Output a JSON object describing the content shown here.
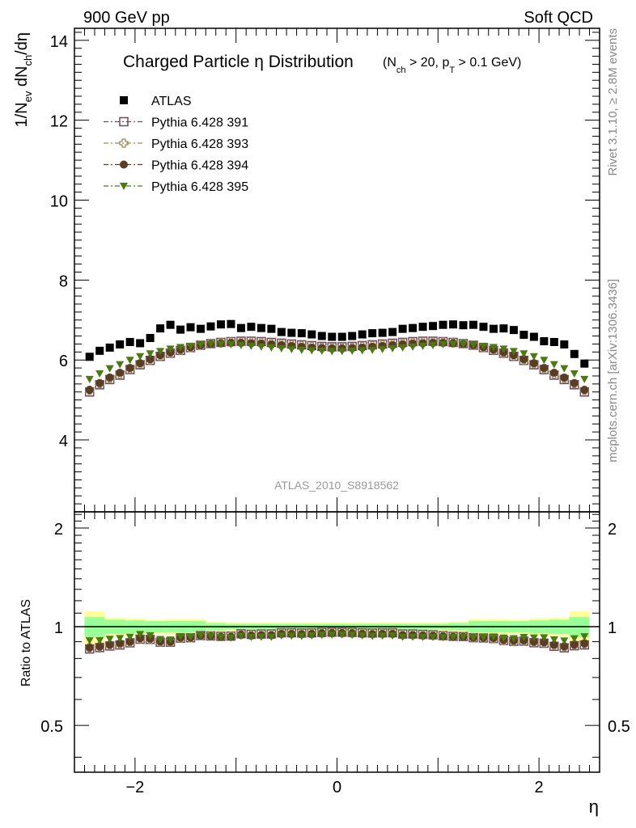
{
  "header": {
    "left": "900 GeV pp",
    "right": "Soft QCD"
  },
  "side": {
    "rivet": "Rivet 3.1.10, ≥ 2.8M events",
    "mcplots": "mcplots.cern.ch [arXiv:1306.3436]"
  },
  "colors": {
    "atlas": "#000000",
    "p391": "#6e4a5c",
    "p393": "#9a8a5a",
    "p394": "#5a3d24",
    "p395": "#4a7a10",
    "band_outer": "#ffff99",
    "band_inner": "#99ff99"
  },
  "chart_data": [
    {
      "type": "scatter",
      "title": "Charged Particle η Distribution",
      "title_sub": "(N_ch > 20, p_T > 0.1 GeV)",
      "analysis_label": "ATLAS_2010_S8918562",
      "ylabel": "1/N_ev dN_ch/dη",
      "xlim": [
        -2.6,
        2.6
      ],
      "ylim": [
        2.2,
        14.3
      ],
      "yticks": [
        4,
        6,
        8,
        10,
        12,
        14
      ],
      "legend_position": "top-left",
      "legend": [
        "ATLAS",
        "Pythia 6.428 391",
        "Pythia 6.428 393",
        "Pythia 6.428 394",
        "Pythia 6.428 395"
      ],
      "x": [
        -2.45,
        -2.35,
        -2.25,
        -2.15,
        -2.05,
        -1.95,
        -1.85,
        -1.75,
        -1.65,
        -1.55,
        -1.45,
        -1.35,
        -1.25,
        -1.15,
        -1.05,
        -0.95,
        -0.85,
        -0.75,
        -0.65,
        -0.55,
        -0.45,
        -0.35,
        -0.25,
        -0.15,
        -0.05,
        0.05,
        0.15,
        0.25,
        0.35,
        0.45,
        0.55,
        0.65,
        0.75,
        0.85,
        0.95,
        1.05,
        1.15,
        1.25,
        1.35,
        1.45,
        1.55,
        1.65,
        1.75,
        1.85,
        1.95,
        2.05,
        2.15,
        2.25,
        2.35,
        2.45
      ],
      "series": [
        {
          "name": "ATLAS",
          "marker": "filled-square",
          "values": [
            6.08,
            6.23,
            6.31,
            6.39,
            6.45,
            6.42,
            6.55,
            6.79,
            6.88,
            6.76,
            6.82,
            6.78,
            6.84,
            6.89,
            6.9,
            6.8,
            6.83,
            6.8,
            6.78,
            6.7,
            6.68,
            6.67,
            6.64,
            6.6,
            6.58,
            6.58,
            6.6,
            6.64,
            6.67,
            6.68,
            6.7,
            6.78,
            6.8,
            6.83,
            6.85,
            6.88,
            6.89,
            6.87,
            6.88,
            6.83,
            6.78,
            6.79,
            6.75,
            6.63,
            6.58,
            6.47,
            6.45,
            6.39,
            6.15,
            5.91
          ]
        },
        {
          "name": "Pythia 6.428 391",
          "marker": "open-square",
          "values": [
            5.2,
            5.38,
            5.51,
            5.62,
            5.76,
            5.88,
            5.99,
            6.09,
            6.17,
            6.24,
            6.31,
            6.37,
            6.41,
            6.44,
            6.46,
            6.47,
            6.47,
            6.46,
            6.44,
            6.42,
            6.4,
            6.38,
            6.36,
            6.34,
            6.33,
            6.33,
            6.34,
            6.36,
            6.38,
            6.4,
            6.42,
            6.44,
            6.46,
            6.47,
            6.47,
            6.46,
            6.44,
            6.41,
            6.37,
            6.31,
            6.24,
            6.17,
            6.09,
            5.99,
            5.88,
            5.76,
            5.62,
            5.51,
            5.38,
            5.2
          ]
        },
        {
          "name": "Pythia 6.428 393",
          "marker": "open-cross",
          "values": [
            5.24,
            5.41,
            5.54,
            5.65,
            5.78,
            5.9,
            6.0,
            6.1,
            6.18,
            6.25,
            6.31,
            6.37,
            6.41,
            6.43,
            6.45,
            6.45,
            6.45,
            6.44,
            6.42,
            6.4,
            6.38,
            6.36,
            6.34,
            6.32,
            6.31,
            6.31,
            6.32,
            6.34,
            6.36,
            6.38,
            6.4,
            6.42,
            6.44,
            6.45,
            6.45,
            6.45,
            6.43,
            6.41,
            6.37,
            6.31,
            6.25,
            6.18,
            6.1,
            6.0,
            5.9,
            5.78,
            5.65,
            5.54,
            5.41,
            5.24
          ]
        },
        {
          "name": "Pythia 6.428 394",
          "marker": "filled-circle",
          "values": [
            5.25,
            5.42,
            5.56,
            5.68,
            5.8,
            5.92,
            6.02,
            6.12,
            6.19,
            6.26,
            6.32,
            6.37,
            6.4,
            6.42,
            6.43,
            6.43,
            6.42,
            6.41,
            6.39,
            6.37,
            6.35,
            6.33,
            6.31,
            6.3,
            6.29,
            6.29,
            6.3,
            6.31,
            6.33,
            6.35,
            6.37,
            6.39,
            6.41,
            6.42,
            6.43,
            6.43,
            6.42,
            6.4,
            6.37,
            6.32,
            6.26,
            6.19,
            6.12,
            6.02,
            5.92,
            5.8,
            5.68,
            5.56,
            5.42,
            5.25
          ]
        },
        {
          "name": "Pythia 6.428 395",
          "marker": "filled-triangle-down",
          "values": [
            5.52,
            5.66,
            5.79,
            5.89,
            6.0,
            6.09,
            6.16,
            6.22,
            6.28,
            6.32,
            6.35,
            6.38,
            6.4,
            6.4,
            6.39,
            6.37,
            6.35,
            6.33,
            6.31,
            6.29,
            6.27,
            6.25,
            6.24,
            6.23,
            6.22,
            6.22,
            6.23,
            6.24,
            6.25,
            6.27,
            6.29,
            6.31,
            6.33,
            6.35,
            6.37,
            6.39,
            6.4,
            6.4,
            6.38,
            6.35,
            6.32,
            6.28,
            6.22,
            6.16,
            6.09,
            6.0,
            5.89,
            5.79,
            5.66,
            5.52
          ]
        }
      ]
    },
    {
      "type": "scatter",
      "ylabel": "Ratio to ATLAS",
      "xlabel": "η",
      "xlim": [
        -2.6,
        2.6
      ],
      "ylim": [
        0.36,
        2.24
      ],
      "yticks": [
        0.5,
        1,
        2
      ],
      "xticks": [
        -2,
        0,
        2
      ],
      "band_edges": [
        -2.5,
        -2.3,
        -2.1,
        -1.9,
        -1.7,
        -1.3,
        -1.1,
        1.1,
        1.3,
        1.7,
        1.9,
        2.1,
        2.3,
        2.5
      ],
      "band_outer_halfwidth": [
        0.115,
        0.065,
        0.06,
        0.05,
        0.055,
        0.035,
        0.03,
        0.035,
        0.055,
        0.05,
        0.06,
        0.065,
        0.115
      ],
      "band_inner_halfwidth": [
        0.07,
        0.05,
        0.045,
        0.04,
        0.04,
        0.025,
        0.02,
        0.025,
        0.04,
        0.04,
        0.045,
        0.05,
        0.07
      ],
      "note": "ratio values computed from the main-panel series divided by ATLAS"
    }
  ]
}
